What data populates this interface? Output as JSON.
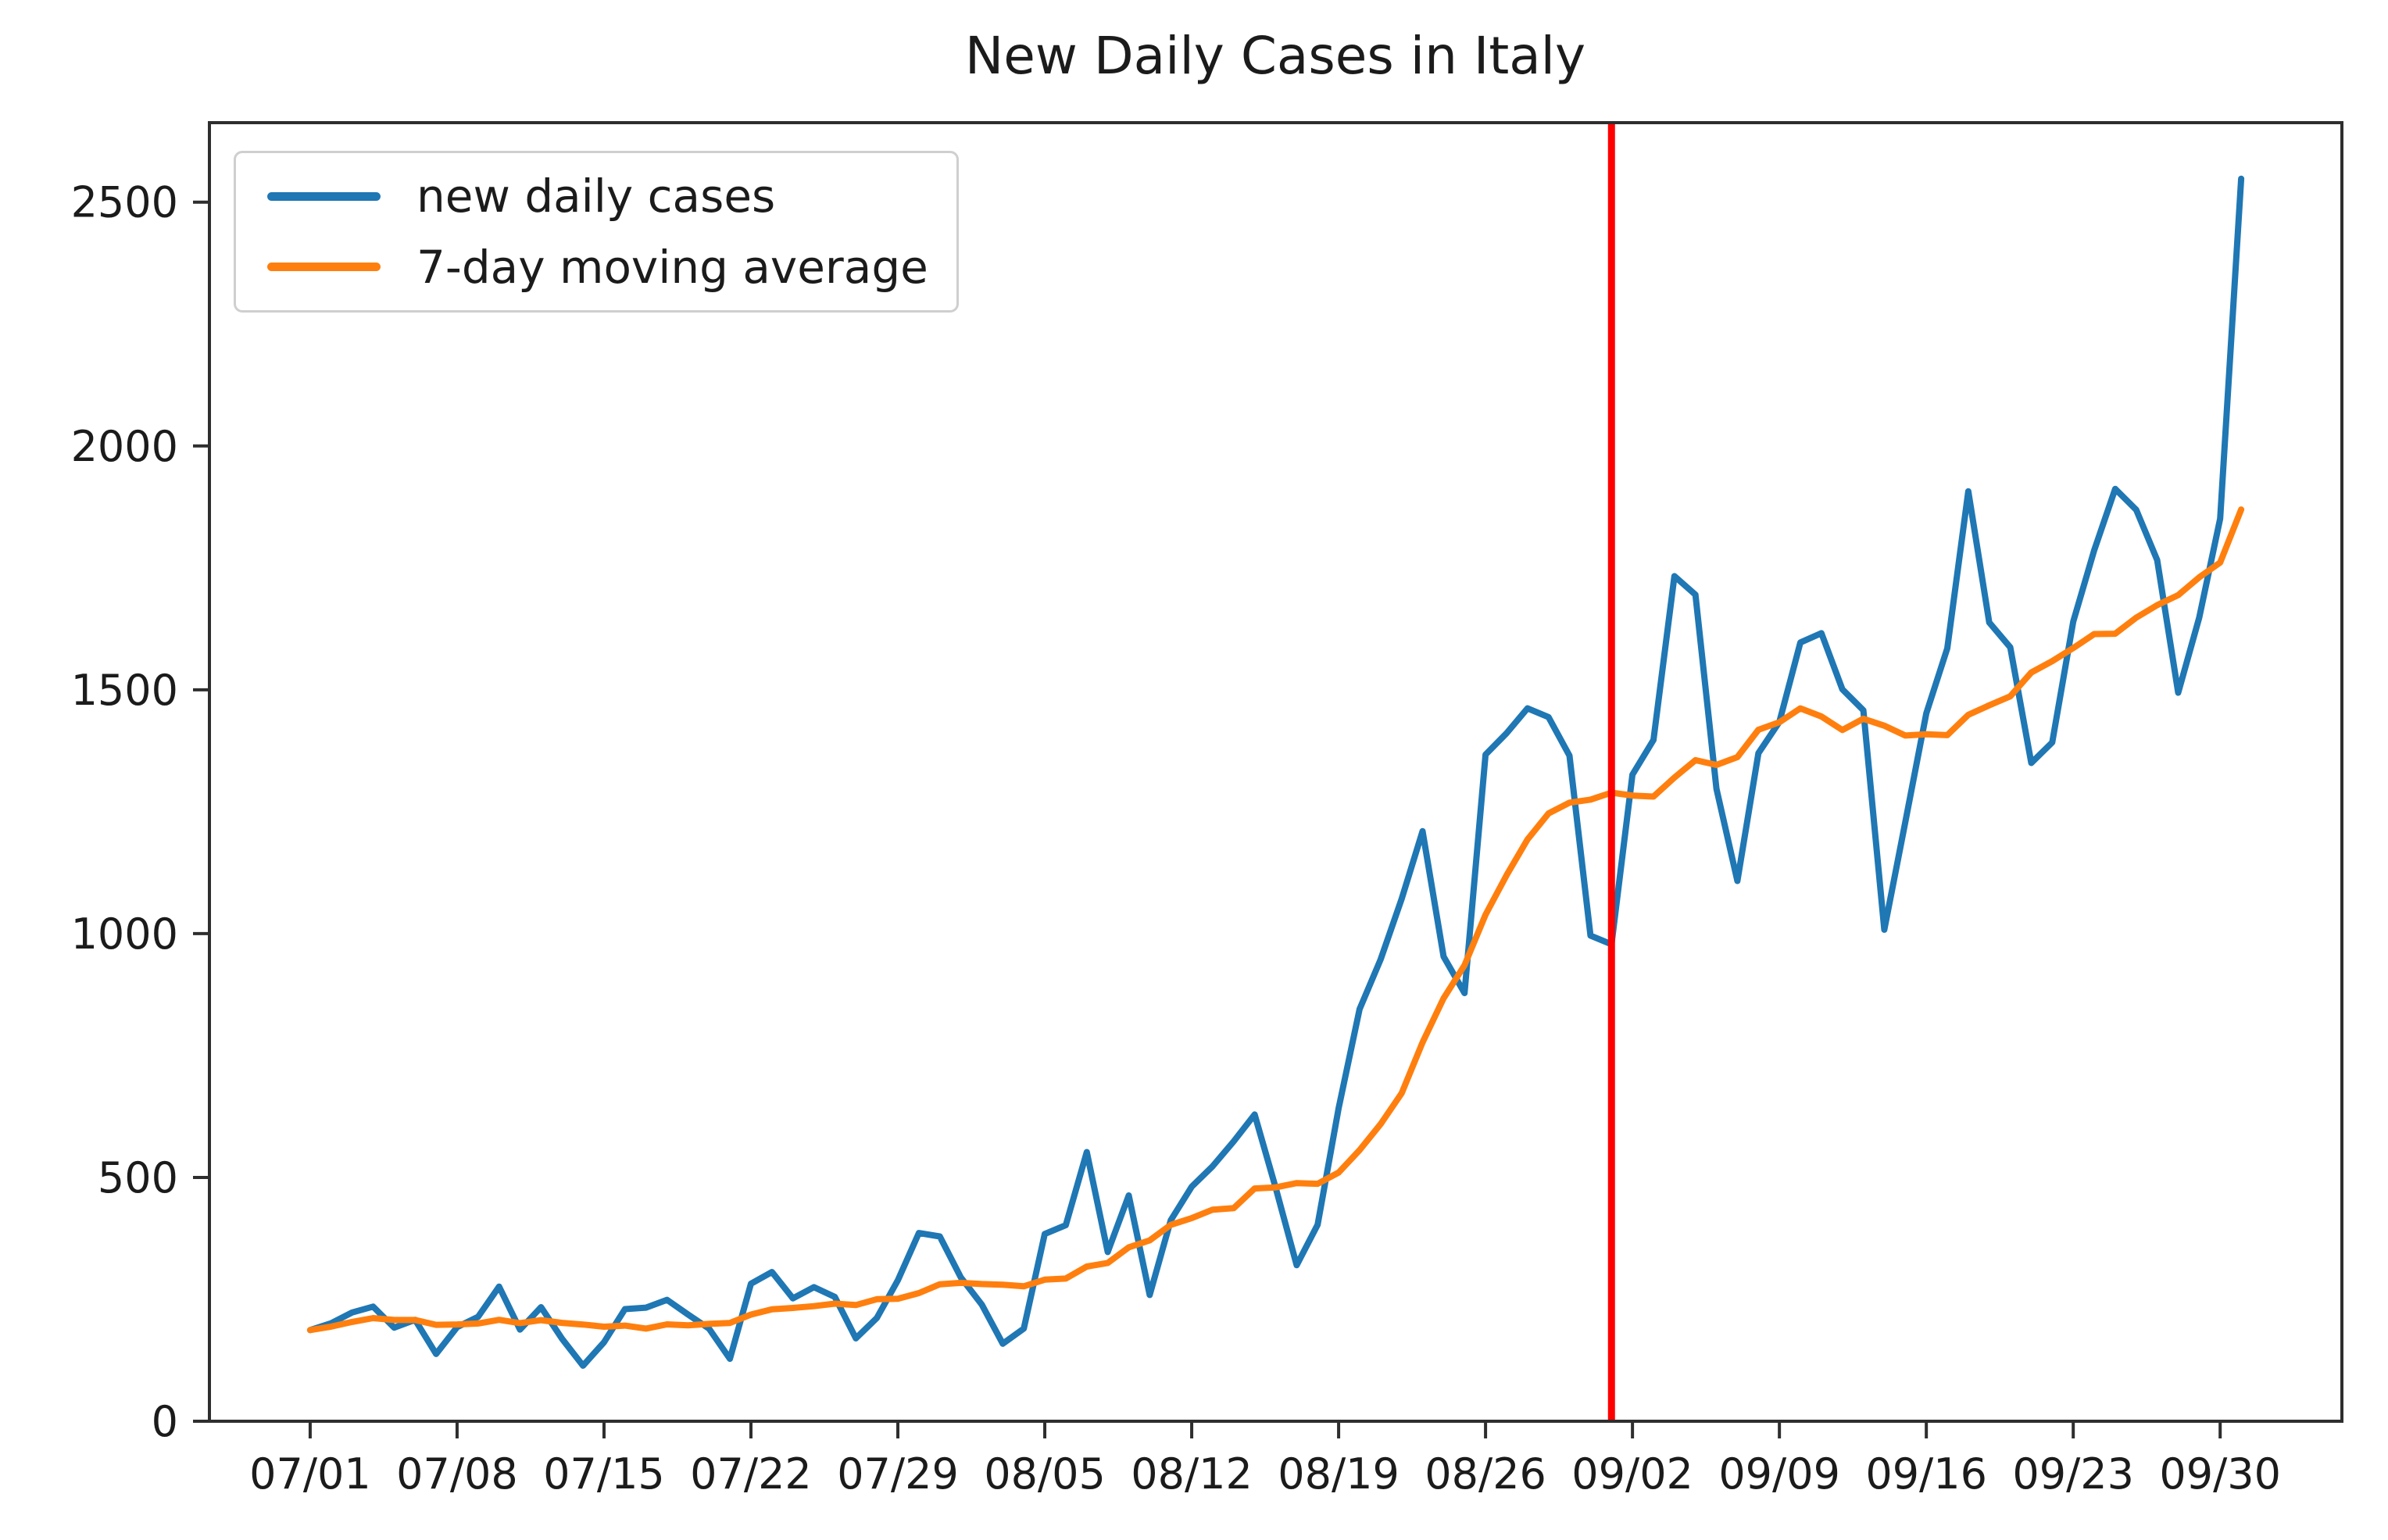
{
  "figure": {
    "background": "#ffffff",
    "axis_color": "#2e2e2e",
    "text_color": "#1b1b1b"
  },
  "chart_data": {
    "type": "line",
    "title": "New Daily Cases in Italy",
    "xlabel": "",
    "ylabel": "",
    "grid": false,
    "legend_position": "upper left",
    "xlim": [
      -4.8,
      96.8
    ],
    "ylim": [
      0,
      2663
    ],
    "y_ticks": [
      0,
      500,
      1000,
      1500,
      2000,
      2500
    ],
    "x_tick_labels": [
      "07/01",
      "07/08",
      "07/15",
      "07/22",
      "07/29",
      "08/05",
      "08/12",
      "08/19",
      "08/26",
      "09/02",
      "09/09",
      "09/16",
      "09/23",
      "09/30"
    ],
    "x_tick_indices": [
      0,
      7,
      14,
      21,
      28,
      35,
      42,
      49,
      56,
      63,
      70,
      77,
      84,
      91
    ],
    "x_dates": [
      "07/01",
      "07/02",
      "07/03",
      "07/04",
      "07/05",
      "07/06",
      "07/07",
      "07/08",
      "07/09",
      "07/10",
      "07/11",
      "07/12",
      "07/13",
      "07/14",
      "07/15",
      "07/16",
      "07/17",
      "07/18",
      "07/19",
      "07/20",
      "07/21",
      "07/22",
      "07/23",
      "07/24",
      "07/25",
      "07/26",
      "07/27",
      "07/28",
      "07/29",
      "07/30",
      "07/31",
      "08/01",
      "08/02",
      "08/03",
      "08/04",
      "08/05",
      "08/06",
      "08/07",
      "08/08",
      "08/09",
      "08/10",
      "08/11",
      "08/12",
      "08/13",
      "08/14",
      "08/15",
      "08/16",
      "08/17",
      "08/18",
      "08/19",
      "08/20",
      "08/21",
      "08/22",
      "08/23",
      "08/24",
      "08/25",
      "08/26",
      "08/27",
      "08/28",
      "08/29",
      "08/30",
      "08/31",
      "09/01",
      "09/02",
      "09/03",
      "09/04",
      "09/05",
      "09/06",
      "09/07",
      "09/08",
      "09/09",
      "09/10",
      "09/11",
      "09/12",
      "09/13",
      "09/14",
      "09/15",
      "09/16",
      "09/17",
      "09/18",
      "09/19",
      "09/20",
      "09/21",
      "09/22",
      "09/23",
      "09/24",
      "09/25",
      "09/26",
      "09/27",
      "09/28",
      "09/29",
      "09/30",
      "10/01"
    ],
    "series": [
      {
        "name": "new daily cases",
        "color": "#1f77b4",
        "values": [
          187,
          201,
          223,
          235,
          192,
          208,
          138,
          193,
          214,
          276,
          188,
          234,
          169,
          114,
          162,
          230,
          233,
          249,
          219,
          190,
          128,
          282,
          306,
          252,
          275,
          255,
          170,
          212,
          289,
          386,
          379,
          295,
          239,
          159,
          190,
          384,
          402,
          552,
          347,
          463,
          259,
          412,
          481,
          523,
          574,
          629,
          479,
          320,
          403,
          642,
          845,
          947,
          1071,
          1210,
          953,
          878,
          1367,
          1411,
          1462,
          1444,
          1365,
          996,
          978,
          1326,
          1397,
          1733,
          1695,
          1297,
          1108,
          1370,
          1434,
          1597,
          1616,
          1501,
          1458,
          1008,
          1229,
          1452,
          1585,
          1907,
          1638,
          1587,
          1350,
          1392,
          1640,
          1786,
          1912,
          1869,
          1766,
          1494,
          1648,
          1851,
          2548
        ]
      },
      {
        "name": "7-day moving average",
        "color": "#ff7f0e",
        "values": [
          187.0,
          194.0,
          203.7,
          211.5,
          207.6,
          207.7,
          197.7,
          198.6,
          200.4,
          208.0,
          201.3,
          207.3,
          201.7,
          198.3,
          193.9,
          196.1,
          190.0,
          198.7,
          196.6,
          199.6,
          201.6,
          218.7,
          229.6,
          232.3,
          236.0,
          241.1,
          238.3,
          250.3,
          251.3,
          262.7,
          280.9,
          283.7,
          281.4,
          279.9,
          276.7,
          290.3,
          292.6,
          317.3,
          324.7,
          356.7,
          371.0,
          402.7,
          416.6,
          433.9,
          437.0,
          477.3,
          479.6,
          488.3,
          487.0,
          510.0,
          556.0,
          609.3,
          672.4,
          776.9,
          867.3,
          935.1,
          1038.7,
          1119.6,
          1193.1,
          1246.4,
          1268.6,
          1274.7,
          1289.0,
          1283.1,
          1281.1,
          1319.9,
          1355.7,
          1346.0,
          1362.0,
          1418.0,
          1433.4,
          1462.0,
          1445.3,
          1417.6,
          1440.6,
          1426.3,
          1406.1,
          1408.7,
          1407.0,
          1448.6,
          1468.1,
          1486.6,
          1535.4,
          1558.7,
          1585.6,
          1614.3,
          1615.0,
          1648.0,
          1673.6,
          1694.1,
          1730.7,
          1760.9,
          1869.7
        ]
      }
    ],
    "vline": {
      "date": "09/01",
      "x_index": 62,
      "color": "#ff0000"
    }
  }
}
